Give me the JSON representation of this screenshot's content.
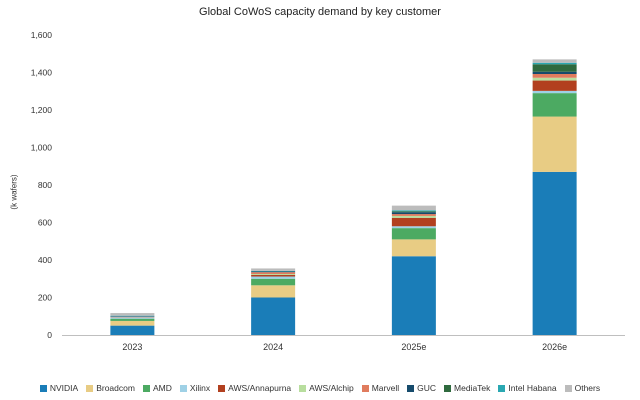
{
  "chart_data": {
    "type": "bar",
    "stacked": true,
    "title": "Global CoWoS capacity demand by key customer",
    "ylabel": "(k wafers)",
    "xlabel": "",
    "ylim": [
      0,
      1600
    ],
    "yticks": [
      0,
      200,
      400,
      600,
      800,
      1000,
      1200,
      1400,
      1600
    ],
    "ytick_labels": [
      "0",
      "200",
      "400",
      "600",
      "800",
      "1,000",
      "1,200",
      "1,400",
      "1,600"
    ],
    "categories": [
      "2023",
      "2024",
      "2025e",
      "2026e"
    ],
    "legend_position": "bottom",
    "grid": false,
    "series": [
      {
        "name": "NVIDIA",
        "color": "#1a7db8",
        "values": [
          50,
          200,
          420,
          870
        ]
      },
      {
        "name": "Broadcom",
        "color": "#e8cc84",
        "values": [
          25,
          65,
          90,
          295
        ]
      },
      {
        "name": "AMD",
        "color": "#4caa62",
        "values": [
          12,
          35,
          60,
          125
        ]
      },
      {
        "name": "Xilinx",
        "color": "#9fd1e6",
        "values": [
          7,
          12,
          10,
          12
        ]
      },
      {
        "name": "AWS/Annapurna",
        "color": "#b2401f",
        "values": [
          0,
          8,
          45,
          55
        ]
      },
      {
        "name": "AWS/Alchip",
        "color": "#b8de9e",
        "values": [
          0,
          5,
          10,
          15
        ]
      },
      {
        "name": "Marvell",
        "color": "#e07c5e",
        "values": [
          3,
          10,
          10,
          20
        ]
      },
      {
        "name": "GUC",
        "color": "#164b6c",
        "values": [
          3,
          4,
          10,
          12
        ]
      },
      {
        "name": "MediaTek",
        "color": "#2f6a3e",
        "values": [
          0,
          0,
          5,
          40
        ]
      },
      {
        "name": "Intel Habana",
        "color": "#2aa8b2",
        "values": [
          3,
          3,
          5,
          8
        ]
      },
      {
        "name": "Others",
        "color": "#bcbcbc",
        "values": [
          14,
          13,
          25,
          18
        ]
      }
    ]
  }
}
